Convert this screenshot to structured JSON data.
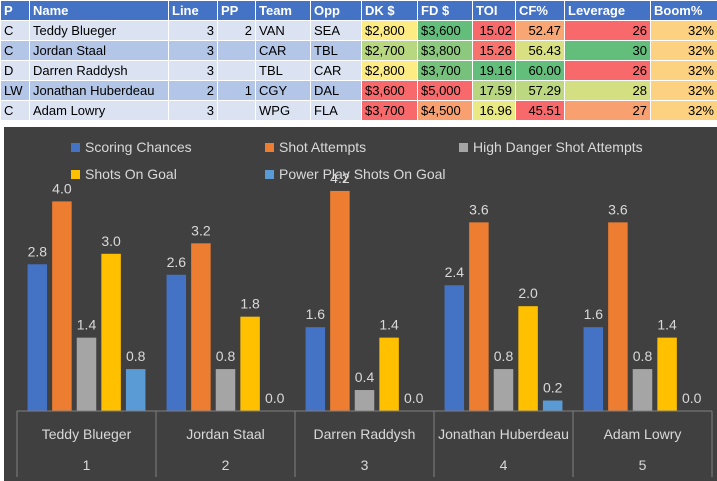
{
  "table": {
    "headers": [
      "P",
      "Name",
      "Line",
      "PP",
      "Team",
      "Opp",
      "DK $",
      "FD $",
      "TOI",
      "CF%",
      "Leverage",
      "Boom%"
    ],
    "rows": [
      {
        "pos": "C",
        "name": "Teddy Blueger",
        "line": "3",
        "pp": "2",
        "team": "VAN",
        "opp": "SEA",
        "dk": "$2,800",
        "fd": "$3,600",
        "toi": "15.02",
        "cf": "52.47",
        "leverage": "26",
        "boom": "32%"
      },
      {
        "pos": "C",
        "name": "Jordan Staal",
        "line": "3",
        "pp": "",
        "team": "CAR",
        "opp": "TBL",
        "dk": "$2,700",
        "fd": "$3,800",
        "toi": "15.26",
        "cf": "56.43",
        "leverage": "30",
        "boom": "32%"
      },
      {
        "pos": "D",
        "name": "Darren Raddysh",
        "line": "3",
        "pp": "",
        "team": "TBL",
        "opp": "CAR",
        "dk": "$2,800",
        "fd": "$3,700",
        "toi": "19.16",
        "cf": "60.00",
        "leverage": "26",
        "boom": "32%"
      },
      {
        "pos": "LW",
        "name": "Jonathan Huberdeau",
        "line": "2",
        "pp": "1",
        "team": "CGY",
        "opp": "DAL",
        "dk": "$3,600",
        "fd": "$5,000",
        "toi": "17.59",
        "cf": "57.29",
        "leverage": "28",
        "boom": "32%"
      },
      {
        "pos": "C",
        "name": "Adam Lowry",
        "line": "3",
        "pp": "",
        "team": "WPG",
        "opp": "FLA",
        "dk": "$3,700",
        "fd": "$4,500",
        "toi": "16.96",
        "cf": "45.51",
        "leverage": "27",
        "boom": "32%"
      }
    ],
    "cell_colors": {
      "dk": [
        "#fdeb84",
        "#b7d780",
        "#fdeb84",
        "#f8696b",
        "#f8696b"
      ],
      "fd": [
        "#63be7b",
        "#8cc97e",
        "#76c27c",
        "#f8696b",
        "#f8a070"
      ],
      "toi": [
        "#f8696b",
        "#f8736d",
        "#63be7b",
        "#b8d680",
        "#eaea84"
      ],
      "cf": [
        "#f8a674",
        "#d8e082",
        "#63be7b",
        "#bcd881",
        "#f8696b"
      ],
      "leverage": [
        "#f8696b",
        "#63be7b",
        "#f8696b",
        "#d4df82",
        "#f8a070"
      ],
      "boom": [
        "#fcd17f",
        "#fcd17f",
        "#fcd17f",
        "#fcd17f",
        "#fcd17f"
      ]
    }
  },
  "chart_data": {
    "type": "bar",
    "title": "",
    "xlabel": "",
    "ylabel": "",
    "ylim": [
      0,
      4.5
    ],
    "grid": false,
    "legend_position": "top",
    "categories": [
      {
        "name": "Teddy Blueger",
        "line": "1"
      },
      {
        "name": "Jordan Staal",
        "line": "2"
      },
      {
        "name": "Darren Raddysh",
        "line": "3"
      },
      {
        "name": "Jonathan Huberdeau",
        "line": "4"
      },
      {
        "name": "Adam Lowry",
        "line": "5"
      }
    ],
    "series": [
      {
        "name": "Scoring Chances",
        "color": "#4472c4",
        "values": [
          2.8,
          2.6,
          1.6,
          2.4,
          1.6
        ],
        "labels": [
          "2.8",
          "2.6",
          "1.6",
          "2.4",
          "1.6"
        ]
      },
      {
        "name": "Shot Attempts",
        "color": "#ed7d31",
        "values": [
          4.0,
          3.2,
          4.2,
          3.6,
          3.6
        ],
        "labels": [
          "4.0",
          "3.2",
          "4.2",
          "3.6",
          "3.6"
        ]
      },
      {
        "name": "High Danger Shot Attempts",
        "color": "#a5a5a5",
        "values": [
          1.4,
          0.8,
          0.4,
          0.8,
          0.8
        ],
        "labels": [
          "1.4",
          "0.8",
          "0.4",
          "0.8",
          "0.8"
        ]
      },
      {
        "name": "Shots On Goal",
        "color": "#ffc000",
        "values": [
          3.0,
          1.8,
          1.4,
          2.0,
          1.4
        ],
        "labels": [
          "3.0",
          "1.8",
          "1.4",
          "2.0",
          "1.4"
        ]
      },
      {
        "name": "Power Play Shots On Goal",
        "color": "#5b9bd5",
        "values": [
          0.8,
          0.0,
          0.0,
          0.2,
          0.0
        ],
        "labels": [
          "0.8",
          "0.0",
          "0.0",
          "0.2",
          "0.0"
        ]
      }
    ],
    "background": "#404040"
  }
}
